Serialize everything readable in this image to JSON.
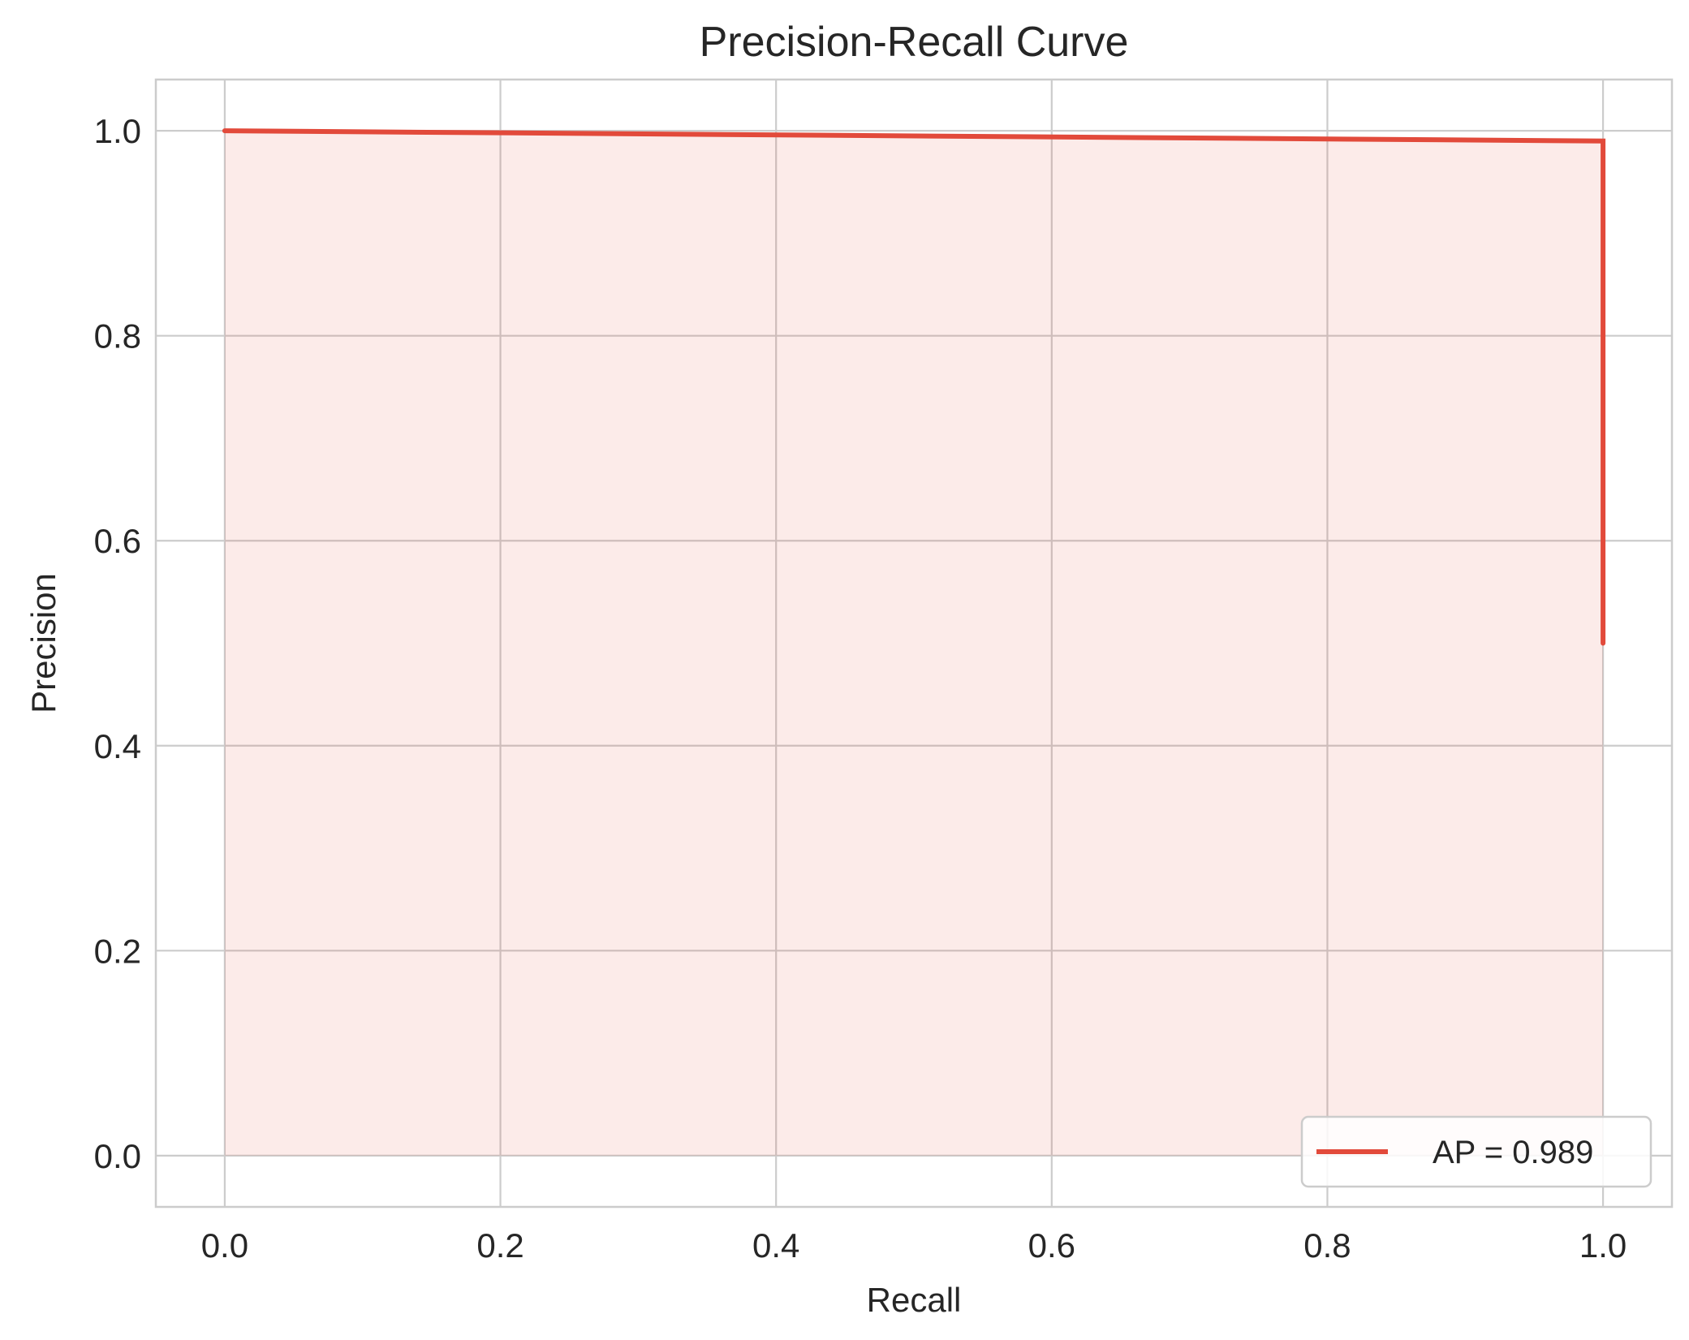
{
  "chart_data": {
    "type": "area",
    "title": "Precision-Recall Curve",
    "xlabel": "Recall",
    "ylabel": "Precision",
    "xlim": [
      -0.05,
      1.05
    ],
    "ylim": [
      -0.05,
      1.05
    ],
    "xticks": [
      0.0,
      0.2,
      0.4,
      0.6,
      0.8,
      1.0
    ],
    "yticks": [
      0.0,
      0.2,
      0.4,
      0.6,
      0.8,
      1.0
    ],
    "xtick_labels": [
      "0.0",
      "0.2",
      "0.4",
      "0.6",
      "0.8",
      "1.0"
    ],
    "ytick_labels": [
      "0.0",
      "0.2",
      "0.4",
      "0.6",
      "0.8",
      "1.0"
    ],
    "grid": true,
    "legend_position": "lower-right",
    "series": [
      {
        "name": "AP = 0.989",
        "color": "#e24a3b",
        "fill_color": "#e24a3b",
        "fill_opacity": 0.11,
        "x": [
          0.0,
          1.0,
          1.0
        ],
        "y": [
          1.0,
          0.99,
          0.5
        ]
      }
    ]
  }
}
